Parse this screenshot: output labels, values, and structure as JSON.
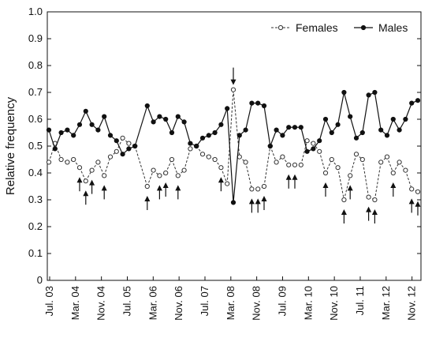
{
  "chart_data": {
    "type": "line",
    "title": "",
    "xlabel": "",
    "ylabel": "Relative frequency",
    "ylim": [
      0,
      1.0
    ],
    "y_ticks": [
      "0",
      "0.1",
      "0.2",
      "0.3",
      "0.4",
      "0.5",
      "0.6",
      "0.7",
      "0.8",
      "0.9",
      "1.0"
    ],
    "x_tick_labels": [
      "Jul. 03",
      "Mar. 04",
      "Nov. 04",
      "Jul. 05",
      "Mar. 06",
      "Nov. 06",
      "Jul. 07",
      "Mar. 08",
      "Nov. 08",
      "Jul. 09",
      "Mar. 10",
      "Nov. 10",
      "Jul. 11",
      "Mar. 12",
      "Nov. 12"
    ],
    "x_tick_months": [
      0,
      8,
      16,
      24,
      32,
      40,
      48,
      56,
      64,
      72,
      80,
      88,
      96,
      104,
      112
    ],
    "legend_position": "top-right",
    "grid": false,
    "series": [
      {
        "name": "Females",
        "style": "dashed-open-circle",
        "points": [
          [
            0,
            0.44
          ],
          [
            1,
            0.51
          ],
          [
            2,
            0.45
          ],
          [
            3,
            0.44
          ],
          [
            4,
            0.45
          ],
          [
            5,
            0.42
          ],
          [
            6,
            0.37
          ],
          [
            7,
            0.41
          ],
          [
            8,
            0.44
          ],
          [
            9,
            0.39
          ],
          [
            10,
            0.46
          ],
          [
            11,
            0.48
          ],
          [
            12,
            0.53
          ],
          [
            13,
            0.51
          ],
          [
            14,
            0.5
          ],
          [
            16,
            0.35
          ],
          [
            17,
            0.41
          ],
          [
            18,
            0.39
          ],
          [
            19,
            0.4
          ],
          [
            20,
            0.45
          ],
          [
            21,
            0.39
          ],
          [
            22,
            0.41
          ],
          [
            23,
            0.49
          ],
          [
            24,
            0.5
          ],
          [
            25,
            0.47
          ],
          [
            26,
            0.46
          ],
          [
            27,
            0.45
          ],
          [
            28,
            0.42
          ],
          [
            29,
            0.36
          ],
          [
            30,
            0.71
          ],
          [
            31,
            0.46
          ],
          [
            32,
            0.44
          ],
          [
            33,
            0.34
          ],
          [
            34,
            0.34
          ],
          [
            35,
            0.35
          ],
          [
            36,
            0.5
          ],
          [
            37,
            0.44
          ],
          [
            38,
            0.46
          ],
          [
            39,
            0.43
          ],
          [
            40,
            0.43
          ],
          [
            41,
            0.43
          ],
          [
            42,
            0.52
          ],
          [
            43,
            0.51
          ],
          [
            44,
            0.48
          ],
          [
            45,
            0.4
          ],
          [
            46,
            0.45
          ],
          [
            47,
            0.42
          ],
          [
            48,
            0.3
          ],
          [
            49,
            0.39
          ],
          [
            50,
            0.47
          ],
          [
            51,
            0.45
          ],
          [
            52,
            0.31
          ],
          [
            53,
            0.3
          ],
          [
            54,
            0.44
          ],
          [
            55,
            0.46
          ],
          [
            56,
            0.4
          ],
          [
            57,
            0.44
          ],
          [
            58,
            0.41
          ],
          [
            59,
            0.34
          ],
          [
            60,
            0.33
          ]
        ]
      },
      {
        "name": "Males",
        "style": "solid-filled-circle",
        "points": [
          [
            0,
            0.56
          ],
          [
            1,
            0.49
          ],
          [
            2,
            0.55
          ],
          [
            3,
            0.56
          ],
          [
            4,
            0.54
          ],
          [
            5,
            0.58
          ],
          [
            6,
            0.63
          ],
          [
            7,
            0.58
          ],
          [
            8,
            0.56
          ],
          [
            9,
            0.61
          ],
          [
            10,
            0.54
          ],
          [
            11,
            0.52
          ],
          [
            12,
            0.47
          ],
          [
            13,
            0.49
          ],
          [
            14,
            0.5
          ],
          [
            16,
            0.65
          ],
          [
            17,
            0.59
          ],
          [
            18,
            0.61
          ],
          [
            19,
            0.6
          ],
          [
            20,
            0.55
          ],
          [
            21,
            0.61
          ],
          [
            22,
            0.59
          ],
          [
            23,
            0.51
          ],
          [
            24,
            0.5
          ],
          [
            25,
            0.53
          ],
          [
            26,
            0.54
          ],
          [
            27,
            0.55
          ],
          [
            28,
            0.58
          ],
          [
            29,
            0.64
          ],
          [
            30,
            0.29
          ],
          [
            31,
            0.54
          ],
          [
            32,
            0.56
          ],
          [
            33,
            0.66
          ],
          [
            34,
            0.66
          ],
          [
            35,
            0.65
          ],
          [
            36,
            0.5
          ],
          [
            37,
            0.56
          ],
          [
            38,
            0.54
          ],
          [
            39,
            0.57
          ],
          [
            40,
            0.57
          ],
          [
            41,
            0.57
          ],
          [
            42,
            0.48
          ],
          [
            43,
            0.49
          ],
          [
            44,
            0.52
          ],
          [
            45,
            0.6
          ],
          [
            46,
            0.55
          ],
          [
            47,
            0.58
          ],
          [
            48,
            0.7
          ],
          [
            49,
            0.61
          ],
          [
            50,
            0.53
          ],
          [
            51,
            0.55
          ],
          [
            52,
            0.69
          ],
          [
            53,
            0.7
          ],
          [
            54,
            0.56
          ],
          [
            55,
            0.54
          ],
          [
            56,
            0.6
          ],
          [
            57,
            0.56
          ],
          [
            58,
            0.6
          ],
          [
            59,
            0.66
          ],
          [
            60,
            0.67
          ]
        ]
      }
    ],
    "annotations": {
      "up_arrows_at_points": [
        5,
        6,
        7,
        9,
        16,
        18,
        19,
        21,
        28,
        33,
        34,
        35,
        39,
        40,
        45,
        48,
        49,
        52,
        53,
        56,
        59,
        60
      ],
      "down_arrows_at_points": [
        30
      ]
    }
  }
}
